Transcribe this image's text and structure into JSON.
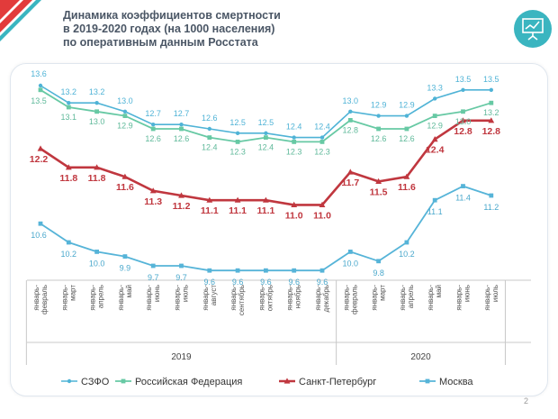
{
  "title_lines": [
    "Динамика коэффициентов смертности",
    "в 2019-2020 годах (на 1000 населения)",
    "по оперативным данным Росстата"
  ],
  "page_number": "2",
  "icon": "presentation-chart-icon",
  "colors": {
    "szfo": "#4fb3d6",
    "rf": "#67c9a4",
    "spb": "#c0373f",
    "moscow": "#56b4d8",
    "brand_red": "#e23b3b",
    "brand_teal": "#3ab5c0"
  },
  "chart_data": {
    "type": "line",
    "title": "Динамика коэффициентов смертности в 2019-2020 годах (на 1000 населения) по оперативным данным Росстата",
    "xlabel": "",
    "ylabel": "",
    "categories": [
      "январь-февраль",
      "январь-март",
      "январь-апрель",
      "январь-май",
      "январь-июнь",
      "январь-июль",
      "январь-август",
      "январь-сентябрь",
      "январь-октябрь",
      "январь-ноябрь",
      "январь-декабрь",
      "январь-февраль",
      "январь-март",
      "январь-апрель",
      "январь-май",
      "январь-июнь",
      "январь-июль"
    ],
    "year_groups": [
      {
        "label": "2019",
        "start": 0,
        "end": 10
      },
      {
        "label": "2020",
        "start": 11,
        "end": 16
      }
    ],
    "series": [
      {
        "name": "СЗФО",
        "color": "#4fb3d6",
        "values": [
          13.6,
          13.2,
          13.2,
          13.0,
          12.7,
          12.7,
          12.6,
          12.5,
          12.5,
          12.4,
          12.4,
          13.0,
          12.9,
          12.9,
          13.3,
          13.5,
          13.5
        ]
      },
      {
        "name": "Российская Федерация",
        "color": "#67c9a4",
        "values": [
          13.5,
          13.1,
          13.0,
          12.9,
          12.6,
          12.6,
          12.4,
          12.3,
          12.4,
          12.3,
          12.3,
          12.8,
          12.6,
          12.6,
          12.9,
          13.0,
          13.2
        ]
      },
      {
        "name": "Санкт-Петербург",
        "color": "#c0373f",
        "values": [
          12.2,
          11.8,
          11.8,
          11.6,
          11.3,
          11.2,
          11.1,
          11.1,
          11.1,
          11.0,
          11.0,
          11.7,
          11.5,
          11.6,
          12.4,
          12.8,
          12.8
        ]
      },
      {
        "name": "Москва",
        "color": "#56b4d8",
        "values": [
          10.6,
          10.2,
          10.0,
          9.9,
          9.7,
          9.7,
          9.6,
          9.6,
          9.6,
          9.6,
          9.6,
          10.0,
          9.8,
          10.2,
          11.1,
          11.4,
          11.2
        ]
      }
    ],
    "legend_position": "bottom",
    "grid": false
  }
}
